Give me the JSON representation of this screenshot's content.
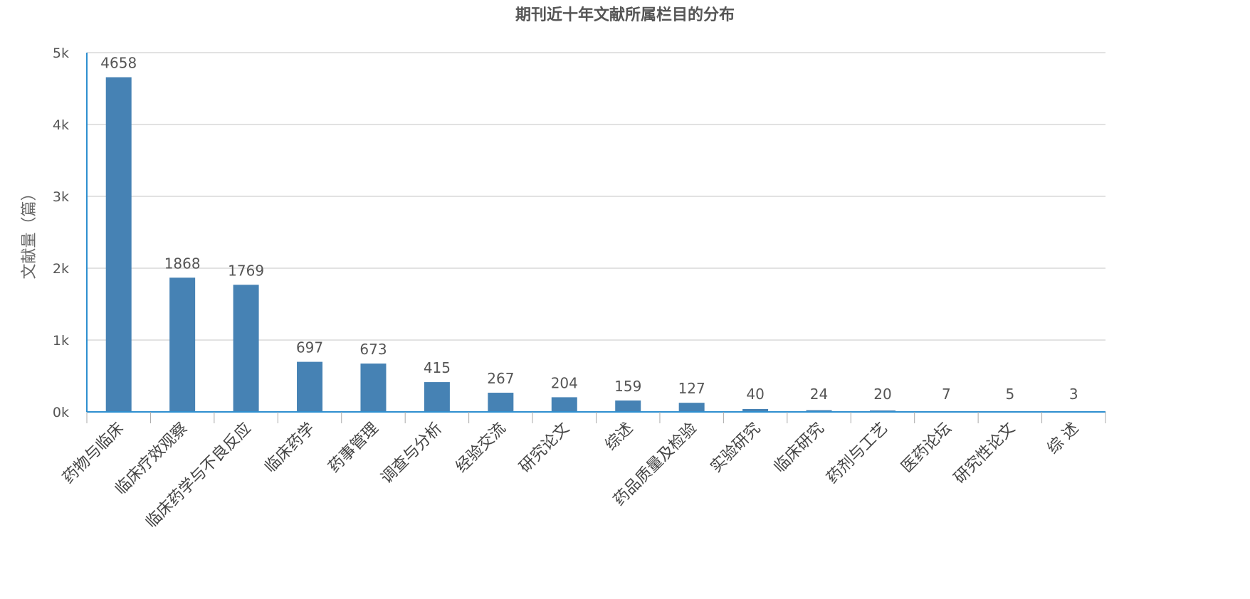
{
  "chart_data": {
    "type": "bar",
    "title": "期刊近十年文献所属栏目的分布",
    "xlabel": "",
    "ylabel": "文献量（篇）",
    "ylim": [
      0,
      5000
    ],
    "yticks": [
      0,
      1000,
      2000,
      3000,
      4000,
      5000
    ],
    "ytick_labels": [
      "0k",
      "1k",
      "2k",
      "3k",
      "4k",
      "5k"
    ],
    "grid": true,
    "legend": "none",
    "bar_color": "#4682b4",
    "axis_color": "#2e8fcf",
    "categories": [
      "药物与临床",
      "临床疗效观察",
      "临床药学与不良反应",
      "临床药学",
      "药事管理",
      "调查与分析",
      "经验交流",
      "研究论文",
      "综述",
      "药品质量及检验",
      "实验研究",
      "临床研究",
      "药剂与工艺",
      "医药论坛",
      "研究性论文",
      "综 述"
    ],
    "values": [
      4658,
      1868,
      1769,
      697,
      673,
      415,
      267,
      204,
      159,
      127,
      40,
      24,
      20,
      7,
      5,
      3
    ],
    "data_labels": [
      "4658",
      "1868",
      "1769",
      "697",
      "673",
      "415",
      "267",
      "204",
      "159",
      "127",
      "40",
      "24",
      "20",
      "7",
      "5",
      "3"
    ]
  }
}
